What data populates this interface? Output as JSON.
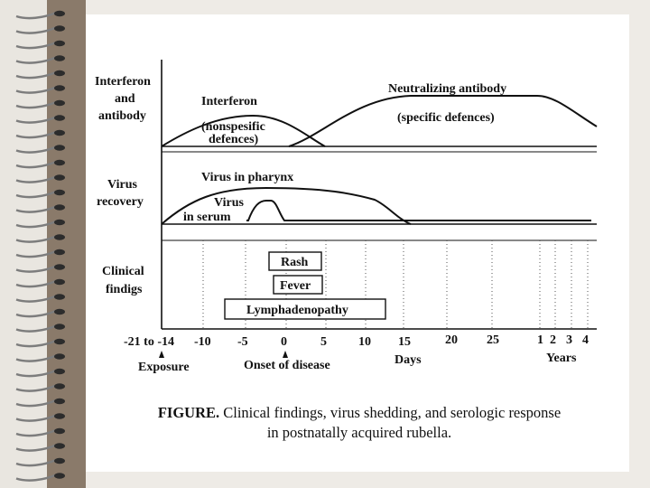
{
  "panels": {
    "top": {
      "row_label": [
        "Interferon",
        "and",
        "antibody"
      ],
      "interferon_label": "Interferon",
      "nonspecific_label": [
        "(nonspesific",
        "defences)"
      ],
      "neutralizing_label": "Neutralizing antibody",
      "specific_label": "(specific defences)"
    },
    "middle": {
      "row_label": [
        "Virus",
        "recovery"
      ],
      "pharynx_label": "Virus in pharynx",
      "serum_label": [
        "Virus",
        "in serum"
      ]
    },
    "bottom": {
      "row_label": [
        "Clinical",
        "findigs"
      ],
      "rash_label": "Rash",
      "fever_label": "Fever",
      "lymph_label": "Lymphadenopathy"
    }
  },
  "axis": {
    "ticks": [
      "-21 to -14",
      "-10",
      "-5",
      "0",
      "5",
      "10",
      "15",
      "20",
      "25",
      "1",
      "2",
      "3",
      "4"
    ],
    "exposure_label": "Exposure",
    "onset_label": "Onset of disease",
    "days_label": "Days",
    "years_label": "Years"
  },
  "caption": {
    "prefix": "FIGURE.",
    "line1": " Clinical findings, virus shedding, and serologic response",
    "line2": "in postnatally acquired rubella."
  }
}
